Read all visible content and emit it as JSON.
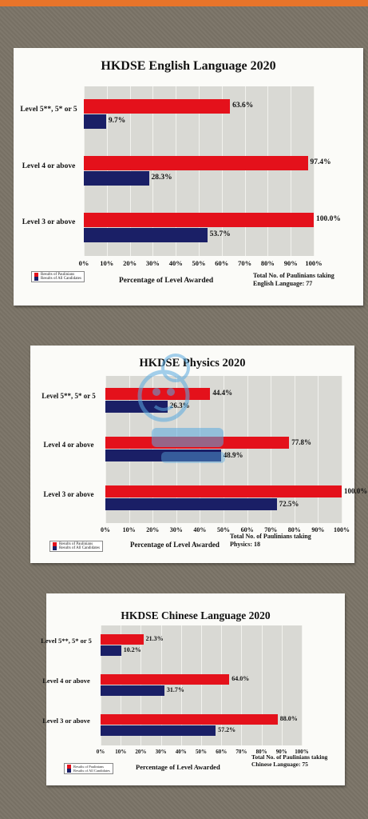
{
  "chart_data": [
    {
      "type": "bar",
      "orientation": "horizontal",
      "title": "HKDSE English Language 2020",
      "categories": [
        "Level 5**, 5* or 5",
        "Level 4 or above",
        "Level 3 or above"
      ],
      "series": [
        {
          "name": "Results of Paulinians",
          "color": "#e4111b",
          "values": [
            63.6,
            97.4,
            100.0
          ],
          "labels": [
            "63.6%",
            "97.4%",
            "100.0%"
          ]
        },
        {
          "name": "Results of All Candidates",
          "color": "#1a1f66",
          "values": [
            9.7,
            28.3,
            53.7
          ],
          "labels": [
            "9.7%",
            "28.3%",
            "53.7%"
          ]
        }
      ],
      "xlabel": "Percentage of Level Awarded",
      "xlim": [
        0,
        100
      ],
      "ticks": [
        "0%",
        "10%",
        "20%",
        "30%",
        "40%",
        "50%",
        "60%",
        "70%",
        "80%",
        "90%",
        "100%"
      ],
      "note": [
        "Total No. of Paulinians taking",
        "English Language: 77"
      ],
      "grid": true,
      "legend": "bottom-left"
    },
    {
      "type": "bar",
      "orientation": "horizontal",
      "title": "HKDSE Physics 2020",
      "categories": [
        "Level 5**, 5* or 5",
        "Level 4 or above",
        "Level 3 or above"
      ],
      "series": [
        {
          "name": "Results of Paulinians",
          "color": "#e4111b",
          "values": [
            44.4,
            77.8,
            100.0
          ],
          "labels": [
            "44.4%",
            "77.8%",
            "100.0%"
          ]
        },
        {
          "name": "Results of All Candidates",
          "color": "#1a1f66",
          "values": [
            26.3,
            48.9,
            72.5
          ],
          "labels": [
            "26.3%",
            "48.9%",
            "72.5%"
          ]
        }
      ],
      "xlabel": "Percentage of Level Awarded",
      "xlim": [
        0,
        100
      ],
      "ticks": [
        "0%",
        "10%",
        "20%",
        "30%",
        "40%",
        "50%",
        "60%",
        "70%",
        "80%",
        "90%",
        "100%"
      ],
      "note": [
        "Total No. of Paulinians taking",
        "Physics: 18"
      ],
      "grid": true,
      "legend": "bottom-left"
    },
    {
      "type": "bar",
      "orientation": "horizontal",
      "title": "HKDSE Chinese Language 2020",
      "categories": [
        "Level 5**, 5* or 5",
        "Level 4 or above",
        "Level 3 or above"
      ],
      "series": [
        {
          "name": "Results of Paulinians",
          "color": "#e4111b",
          "values": [
            21.3,
            64.0,
            88.0
          ],
          "labels": [
            "21.3%",
            "64.0%",
            "88.0%"
          ]
        },
        {
          "name": "Results of All Candidates",
          "color": "#1a1f66",
          "values": [
            10.2,
            31.7,
            57.2
          ],
          "labels": [
            "10.2%",
            "31.7%",
            "57.2%"
          ]
        }
      ],
      "xlabel": "Percentage of Level Awarded",
      "xlim": [
        0,
        100
      ],
      "ticks": [
        "0%",
        "10%",
        "20%",
        "30%",
        "40%",
        "50%",
        "60%",
        "70%",
        "80%",
        "90%",
        "100%"
      ],
      "note": [
        "Total No. of Paulinians taking",
        "Chinese Language: 75"
      ],
      "grid": true,
      "legend": "bottom-left"
    }
  ]
}
